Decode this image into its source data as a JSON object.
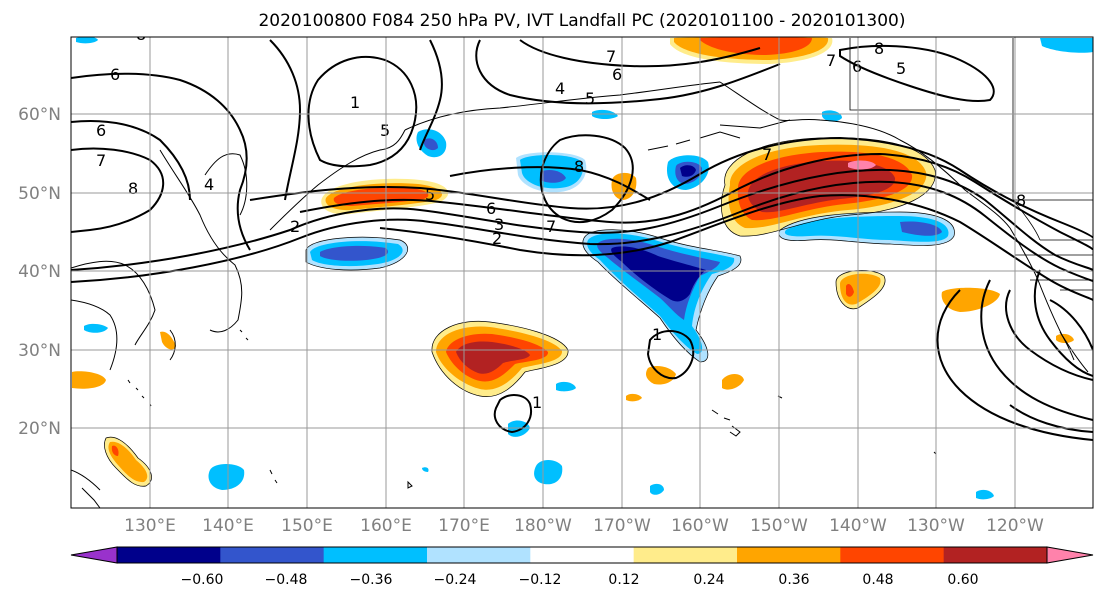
{
  "title": "2020100800 F084 250 hPa PV, IVT Landfall PC (2020101100 - 2020101300)",
  "lat_labels": [
    "60°N",
    "50°N",
    "40°N",
    "30°N",
    "20°N"
  ],
  "lon_labels": [
    "130°E",
    "140°E",
    "150°E",
    "160°E",
    "170°E",
    "180°W",
    "170°W",
    "160°W",
    "150°W",
    "140°W",
    "130°W",
    "120°W"
  ],
  "colorbar": {
    "colors": [
      "#9932CC",
      "#00008B",
      "#3355CC",
      "#00BFFF",
      "#B0E2FF",
      "#FFFFFF",
      "#FFEC8B",
      "#FFA500",
      "#FF4500",
      "#B22222",
      "#FF82AB"
    ],
    "tick_labels": [
      "−0.60",
      "−0.48",
      "−0.36",
      "−0.24",
      "−0.12",
      "0.12",
      "0.24",
      "0.36",
      "0.48",
      "0.60"
    ]
  },
  "contour_labels": [
    "6",
    "6",
    "7",
    "8",
    "1",
    "5",
    "4",
    "5",
    "6",
    "7",
    "8",
    "4",
    "5",
    "2",
    "3",
    "6",
    "7",
    "2",
    "7",
    "8",
    "1",
    "1",
    "7",
    "6",
    "5",
    "8",
    "8"
  ],
  "colors": {
    "grid": "#999999",
    "axis_text": "#808080",
    "contour": "#000000"
  }
}
